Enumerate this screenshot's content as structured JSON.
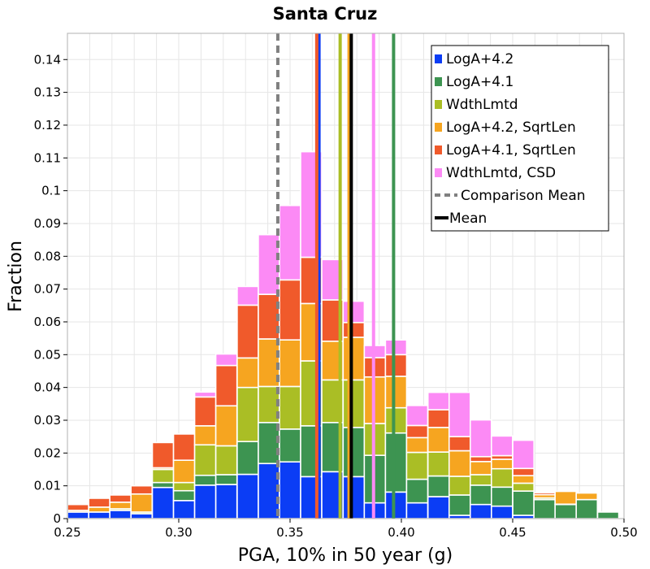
{
  "chart_data": {
    "type": "bar",
    "stacked": true,
    "title": "Santa Cruz",
    "xlabel": "PGA, 10% in 50 year (g)",
    "ylabel": "Fraction",
    "xlim": [
      0.25,
      0.5
    ],
    "ylim": [
      0,
      0.148
    ],
    "grid": true,
    "legend_position": "top-right",
    "x_ticks": [
      "0.25",
      "0.30",
      "0.35",
      "0.40",
      "0.45",
      "0.50"
    ],
    "x_tick_values": [
      0.25,
      0.3,
      0.35,
      0.4,
      0.45,
      0.5
    ],
    "y_ticks": [
      "0",
      "0.01",
      "0.02",
      "0.03",
      "0.04",
      "0.05",
      "0.06",
      "0.07",
      "0.08",
      "0.09",
      "0.1",
      "0.11",
      "0.12",
      "0.13",
      "0.14"
    ],
    "y_tick_values": [
      0,
      0.01,
      0.02,
      0.03,
      0.04,
      0.05,
      0.06,
      0.07,
      0.08,
      0.09,
      0.1,
      0.11,
      0.12,
      0.13,
      0.14
    ],
    "bin_width": 0.00952,
    "x": [
      0.2548,
      0.2643,
      0.2738,
      0.2833,
      0.2929,
      0.3024,
      0.3119,
      0.3214,
      0.331,
      0.3405,
      0.35,
      0.3595,
      0.369,
      0.3786,
      0.3881,
      0.3976,
      0.4071,
      0.4167,
      0.4262,
      0.4357,
      0.4452,
      0.4548,
      0.4643,
      0.4738,
      0.4833,
      0.4929
    ],
    "series": [
      {
        "name": "LogA+4.2",
        "color": "#0b3df5",
        "values": [
          0.002,
          0.002,
          0.0025,
          0.0015,
          0.0095,
          0.0055,
          0.0102,
          0.0104,
          0.0135,
          0.0168,
          0.0173,
          0.0128,
          0.0143,
          0.0128,
          0.0048,
          0.0081,
          0.0048,
          0.0067,
          0.001,
          0.0043,
          0.0038,
          0.001,
          0,
          0,
          0,
          0
        ]
      },
      {
        "name": "LogA+4.1",
        "color": "#3d9451",
        "values": [
          0,
          0,
          0,
          0,
          0.0015,
          0.003,
          0.003,
          0.003,
          0.01,
          0.0125,
          0.01,
          0.0155,
          0.015,
          0.015,
          0.0145,
          0.018,
          0.0072,
          0.0063,
          0.0062,
          0.0059,
          0.0058,
          0.0074,
          0.0058,
          0.0043,
          0.0058,
          0.002
        ]
      },
      {
        "name": "WdthLmtd",
        "color": "#aabe25",
        "values": [
          0,
          0,
          0.0005,
          0.0005,
          0.004,
          0.0025,
          0.0093,
          0.0088,
          0.0165,
          0.011,
          0.013,
          0.0198,
          0.013,
          0.0145,
          0.0097,
          0.0077,
          0.0082,
          0.0073,
          0.0057,
          0.0032,
          0.0056,
          0.0024,
          0.0005,
          0.0001,
          0,
          0
        ]
      },
      {
        "name": "LogA+4.2, SqrtLen",
        "color": "#f6a520",
        "values": [
          0.0005,
          0.0015,
          0.002,
          0.0055,
          0.0005,
          0.0068,
          0.0058,
          0.0122,
          0.009,
          0.0145,
          0.0142,
          0.0175,
          0.0118,
          0.013,
          0.0142,
          0.0096,
          0.0045,
          0.0075,
          0.0078,
          0.004,
          0.0029,
          0.0023,
          0.001,
          0.0039,
          0.002,
          0
        ]
      },
      {
        "name": "LogA+4.1, SqrtLen",
        "color": "#f05a2b",
        "values": [
          0.0018,
          0.0027,
          0.0022,
          0.0025,
          0.0077,
          0.008,
          0.0088,
          0.0123,
          0.0161,
          0.0136,
          0.0183,
          0.0141,
          0.0126,
          0.0045,
          0.0059,
          0.0066,
          0.0037,
          0.0054,
          0.0043,
          0.0015,
          0.0011,
          0.0022,
          0.0006,
          0,
          0,
          0
        ]
      },
      {
        "name": "WdthLmtd, CSD",
        "color": "#fc8af5",
        "values": [
          0,
          0,
          0,
          0,
          0,
          0,
          0.0015,
          0.0035,
          0.0057,
          0.0182,
          0.0227,
          0.0322,
          0.0123,
          0.0065,
          0.0037,
          0.0045,
          0.0061,
          0.0053,
          0.0135,
          0.0112,
          0.006,
          0.0086,
          0,
          0,
          0,
          0
        ]
      }
    ],
    "vertical_lines": [
      {
        "name": "Comparison Mean",
        "x": 0.3445,
        "color": "#808080",
        "style": "dashed",
        "in_legend": true
      },
      {
        "name": "Mean",
        "x": 0.3775,
        "color": "#000000",
        "style": "solid",
        "in_legend": true
      },
      {
        "name": "LogA+4.2 mean",
        "x": 0.363,
        "color": "#0b3df5",
        "style": "solid",
        "in_legend": false
      },
      {
        "name": "LogA+4.1, SqrtLen mean",
        "x": 0.362,
        "color": "#f05a2b",
        "style": "solid",
        "in_legend": false
      },
      {
        "name": "LogA+4.1 mean",
        "x": 0.3965,
        "color": "#3d9451",
        "style": "solid",
        "in_legend": false
      },
      {
        "name": "WdthLmtd mean",
        "x": 0.3725,
        "color": "#aabe25",
        "style": "solid",
        "in_legend": false
      },
      {
        "name": "LogA+4.2, SqrtLen mean",
        "x": 0.3765,
        "color": "#f6a520",
        "style": "solid",
        "in_legend": false
      },
      {
        "name": "WdthLmtd, CSD mean",
        "x": 0.3875,
        "color": "#fc8af5",
        "style": "solid",
        "in_legend": false
      }
    ],
    "legend": [
      {
        "label": "LogA+4.2",
        "color": "#0b3df5",
        "kind": "box"
      },
      {
        "label": "LogA+4.1",
        "color": "#3d9451",
        "kind": "box"
      },
      {
        "label": "WdthLmtd",
        "color": "#aabe25",
        "kind": "box"
      },
      {
        "label": "LogA+4.2, SqrtLen",
        "color": "#f6a520",
        "kind": "box"
      },
      {
        "label": "LogA+4.1, SqrtLen",
        "color": "#f05a2b",
        "kind": "box"
      },
      {
        "label": "WdthLmtd, CSD",
        "color": "#fc8af5",
        "kind": "box"
      },
      {
        "label": "Comparison Mean",
        "color": "#808080",
        "kind": "dashed"
      },
      {
        "label": "Mean",
        "color": "#000000",
        "kind": "line"
      }
    ]
  }
}
